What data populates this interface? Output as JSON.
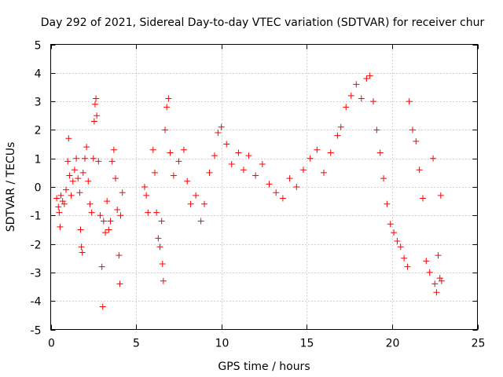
{
  "chart_data": {
    "type": "scatter",
    "title": "Day 292 of 2021, Sidereal Day-to-day VTEC variation (SDTVAR) for receiver chur",
    "xlabel": "GPS time / hours",
    "ylabel": "SDTVAR / TECUs",
    "xlim": [
      0,
      25
    ],
    "ylim": [
      -5,
      5
    ],
    "xticks": [
      0,
      5,
      10,
      15,
      20,
      25
    ],
    "yticks": [
      -5,
      -4,
      -3,
      -2,
      -1,
      0,
      1,
      2,
      3,
      4,
      5
    ],
    "grid": true,
    "marker": "+",
    "color": "#ff0000",
    "series": [
      {
        "name": "SDTVAR",
        "points": [
          [
            0.35,
            -0.4
          ],
          [
            0.45,
            -0.7
          ],
          [
            0.5,
            -0.9
          ],
          [
            0.55,
            -1.4
          ],
          [
            0.6,
            -0.3
          ],
          [
            0.7,
            -0.5
          ],
          [
            0.8,
            -0.6
          ],
          [
            0.9,
            -0.1
          ],
          [
            1.0,
            0.9
          ],
          [
            1.05,
            1.7
          ],
          [
            1.1,
            0.4
          ],
          [
            1.2,
            -0.3
          ],
          [
            1.3,
            0.2
          ],
          [
            1.4,
            0.6
          ],
          [
            1.5,
            1.0
          ],
          [
            1.6,
            0.3
          ],
          [
            1.7,
            -0.2
          ],
          [
            1.75,
            -1.5
          ],
          [
            1.8,
            -2.1
          ],
          [
            1.85,
            -2.3
          ],
          [
            1.9,
            0.5
          ],
          [
            2.0,
            1.0
          ],
          [
            2.1,
            1.4
          ],
          [
            2.2,
            0.2
          ],
          [
            2.3,
            -0.6
          ],
          [
            2.4,
            -0.9
          ],
          [
            2.5,
            1.0
          ],
          [
            2.55,
            2.3
          ],
          [
            2.6,
            2.9
          ],
          [
            2.65,
            3.1
          ],
          [
            2.7,
            2.5
          ],
          [
            2.8,
            0.9
          ],
          [
            2.9,
            -1.0
          ],
          [
            3.0,
            -2.8
          ],
          [
            3.05,
            -4.2
          ],
          [
            3.1,
            -1.2
          ],
          [
            3.2,
            -1.6
          ],
          [
            3.3,
            -0.5
          ],
          [
            3.4,
            -1.5
          ],
          [
            3.5,
            -1.2
          ],
          [
            3.6,
            0.9
          ],
          [
            3.7,
            1.3
          ],
          [
            3.8,
            0.3
          ],
          [
            3.9,
            -0.8
          ],
          [
            4.0,
            -2.4
          ],
          [
            4.05,
            -3.4
          ],
          [
            4.1,
            -1.0
          ],
          [
            4.2,
            -0.2
          ],
          [
            5.5,
            0.0
          ],
          [
            5.6,
            -0.3
          ],
          [
            5.7,
            -0.9
          ],
          [
            6.0,
            1.3
          ],
          [
            6.1,
            0.5
          ],
          [
            6.2,
            -0.9
          ],
          [
            6.3,
            -1.8
          ],
          [
            6.4,
            -2.1
          ],
          [
            6.5,
            -1.2
          ],
          [
            6.55,
            -2.7
          ],
          [
            6.6,
            -3.3
          ],
          [
            6.7,
            2.0
          ],
          [
            6.8,
            2.8
          ],
          [
            6.9,
            3.1
          ],
          [
            7.0,
            1.2
          ],
          [
            7.2,
            0.4
          ],
          [
            7.5,
            0.9
          ],
          [
            7.8,
            1.3
          ],
          [
            8.0,
            0.2
          ],
          [
            8.2,
            -0.6
          ],
          [
            8.5,
            -0.3
          ],
          [
            8.8,
            -1.2
          ],
          [
            9.0,
            -0.6
          ],
          [
            9.3,
            0.5
          ],
          [
            9.6,
            1.1
          ],
          [
            9.8,
            1.9
          ],
          [
            10.0,
            2.1
          ],
          [
            10.3,
            1.5
          ],
          [
            10.6,
            0.8
          ],
          [
            11.0,
            1.2
          ],
          [
            11.3,
            0.6
          ],
          [
            11.6,
            1.1
          ],
          [
            12.0,
            0.4
          ],
          [
            12.4,
            0.8
          ],
          [
            12.8,
            0.1
          ],
          [
            13.2,
            -0.2
          ],
          [
            13.6,
            -0.4
          ],
          [
            14.0,
            0.3
          ],
          [
            14.4,
            0.0
          ],
          [
            14.8,
            0.6
          ],
          [
            15.2,
            1.0
          ],
          [
            15.6,
            1.3
          ],
          [
            16.0,
            0.5
          ],
          [
            16.4,
            1.2
          ],
          [
            16.8,
            1.8
          ],
          [
            17.0,
            2.1
          ],
          [
            17.3,
            2.8
          ],
          [
            17.6,
            3.2
          ],
          [
            17.9,
            3.6
          ],
          [
            18.2,
            3.1
          ],
          [
            18.5,
            3.8
          ],
          [
            18.7,
            3.9
          ],
          [
            18.9,
            3.0
          ],
          [
            19.1,
            2.0
          ],
          [
            19.3,
            1.2
          ],
          [
            19.5,
            0.3
          ],
          [
            19.7,
            -0.6
          ],
          [
            19.9,
            -1.3
          ],
          [
            20.1,
            -1.6
          ],
          [
            20.3,
            -1.9
          ],
          [
            20.5,
            -2.1
          ],
          [
            20.7,
            -2.5
          ],
          [
            20.9,
            -2.8
          ],
          [
            21.0,
            3.0
          ],
          [
            21.2,
            2.0
          ],
          [
            21.4,
            1.6
          ],
          [
            21.6,
            0.6
          ],
          [
            21.8,
            -0.4
          ],
          [
            22.0,
            -2.6
          ],
          [
            22.2,
            -3.0
          ],
          [
            22.4,
            1.0
          ],
          [
            22.5,
            -3.4
          ],
          [
            22.6,
            -3.7
          ],
          [
            22.7,
            -2.4
          ],
          [
            22.8,
            -3.2
          ],
          [
            22.85,
            -0.3
          ],
          [
            22.9,
            -3.3
          ]
        ]
      }
    ]
  }
}
